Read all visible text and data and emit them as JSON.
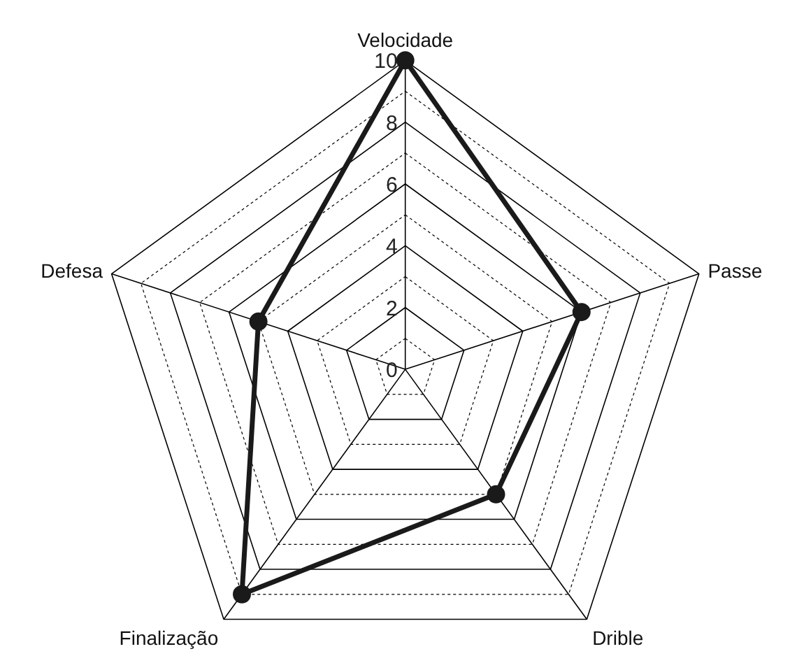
{
  "chart_data": {
    "type": "radar",
    "categories": [
      "Velocidade",
      "Passe",
      "Drible",
      "Finalização",
      "Defesa"
    ],
    "series": [
      {
        "color": "#1a1a1a",
        "values": [
          10,
          6,
          5,
          9,
          5
        ]
      }
    ],
    "ylim": [
      0,
      10
    ],
    "yticks": [
      0,
      2,
      4,
      6,
      8,
      10
    ],
    "grid": true,
    "marker": "circle",
    "line_style": "solid"
  }
}
